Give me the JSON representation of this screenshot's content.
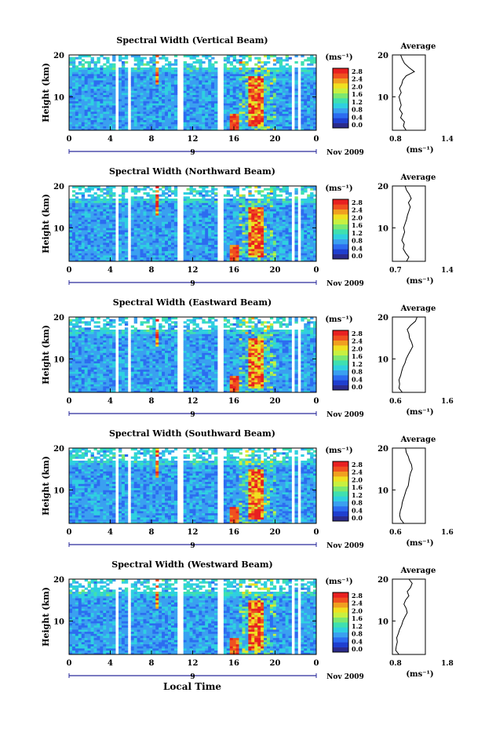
{
  "figure": {
    "x_axis_title": "Local Time",
    "date_label": "Nov 2009",
    "day_marker": "9",
    "y_axis_title": "Height (km)",
    "colorbar_unit": "(ms⁻¹)",
    "average_title": "Average",
    "average_unit": "(ms⁻¹)"
  },
  "colors": {
    "colormap": [
      "#2b2b8c",
      "#1f3fd0",
      "#2c6cf0",
      "#3aa0f0",
      "#2fd0e0",
      "#3fe0b0",
      "#7ce870",
      "#c8f040",
      "#f0e020",
      "#f0a020",
      "#f05020",
      "#e82020"
    ]
  },
  "chart_data": [
    {
      "type": "heatmap",
      "title": "Spectral Width (Vertical Beam)",
      "xlabel": "Local Time",
      "ylabel": "Height (km)",
      "xlim": [
        0,
        24
      ],
      "ylim": [
        2,
        20
      ],
      "xticks": [
        "0",
        "4",
        "8",
        "12",
        "16",
        "20",
        "0"
      ],
      "yticks": [
        "10",
        "20"
      ],
      "colorbar": {
        "unit": "(ms⁻¹)",
        "ticks": [
          "2.8",
          "2.4",
          "2.0",
          "1.6",
          "1.2",
          "0.8",
          "0.4",
          "0.0"
        ]
      },
      "average": {
        "title": "Average",
        "xlabel": "(ms⁻¹)",
        "xlim": [
          0.8,
          1.4
        ],
        "xticks": [
          "0.8",
          "1.4"
        ],
        "yticks": [
          "10",
          "20"
        ],
        "profile": [
          [
            1.05,
            2
          ],
          [
            1.0,
            3
          ],
          [
            1.02,
            4
          ],
          [
            0.95,
            5
          ],
          [
            0.98,
            6
          ],
          [
            0.93,
            7
          ],
          [
            0.96,
            8
          ],
          [
            0.94,
            9
          ],
          [
            0.92,
            10
          ],
          [
            0.96,
            11
          ],
          [
            0.93,
            12
          ],
          [
            0.97,
            13
          ],
          [
            0.99,
            14
          ],
          [
            1.05,
            15
          ],
          [
            1.2,
            16
          ],
          [
            1.1,
            17
          ],
          [
            1.02,
            18
          ],
          [
            0.98,
            19
          ],
          [
            0.95,
            20
          ]
        ]
      }
    },
    {
      "type": "heatmap",
      "title": "Spectral Width (Northward Beam)",
      "xlabel": "Local Time",
      "ylabel": "Height (km)",
      "xlim": [
        0,
        24
      ],
      "ylim": [
        2,
        20
      ],
      "xticks": [
        "0",
        "4",
        "8",
        "12",
        "16",
        "20",
        "0"
      ],
      "yticks": [
        "10",
        "20"
      ],
      "colorbar": {
        "unit": "(ms⁻¹)",
        "ticks": [
          "2.8",
          "2.4",
          "2.0",
          "1.6",
          "1.2",
          "0.8",
          "0.4",
          "0.0"
        ]
      },
      "average": {
        "title": "Average",
        "xlabel": "(ms⁻¹)",
        "xlim": [
          0.7,
          1.4
        ],
        "xticks": [
          "0.7",
          "1.4"
        ],
        "yticks": [
          "10",
          "20"
        ],
        "profile": [
          [
            1.0,
            2
          ],
          [
            1.05,
            3
          ],
          [
            0.98,
            4
          ],
          [
            0.93,
            5
          ],
          [
            0.95,
            6
          ],
          [
            0.9,
            7
          ],
          [
            0.93,
            8
          ],
          [
            0.96,
            9
          ],
          [
            0.94,
            10
          ],
          [
            0.97,
            11
          ],
          [
            1.0,
            12
          ],
          [
            1.02,
            13
          ],
          [
            1.05,
            14
          ],
          [
            1.08,
            15
          ],
          [
            1.04,
            16
          ],
          [
            1.1,
            17
          ],
          [
            1.06,
            18
          ],
          [
            1.0,
            19
          ],
          [
            0.97,
            20
          ]
        ]
      }
    },
    {
      "type": "heatmap",
      "title": "Spectral Width (Eastward Beam)",
      "xlabel": "Local Time",
      "ylabel": "Height (km)",
      "xlim": [
        0,
        24
      ],
      "ylim": [
        2,
        20
      ],
      "xticks": [
        "0",
        "4",
        "8",
        "12",
        "16",
        "20",
        "0"
      ],
      "yticks": [
        "10",
        "20"
      ],
      "colorbar": {
        "unit": "(ms⁻¹)",
        "ticks": [
          "2.8",
          "2.4",
          "2.0",
          "1.6",
          "1.2",
          "0.8",
          "0.4",
          "0.0"
        ]
      },
      "average": {
        "title": "Average",
        "xlabel": "(ms⁻¹)",
        "xlim": [
          0.6,
          1.6
        ],
        "xticks": [
          "0.6",
          "1.6"
        ],
        "yticks": [
          "10",
          "20"
        ],
        "profile": [
          [
            0.9,
            2
          ],
          [
            0.8,
            3
          ],
          [
            0.82,
            4
          ],
          [
            0.8,
            5
          ],
          [
            0.85,
            6
          ],
          [
            0.88,
            7
          ],
          [
            0.92,
            8
          ],
          [
            0.98,
            9
          ],
          [
            1.02,
            10
          ],
          [
            1.08,
            11
          ],
          [
            1.15,
            12
          ],
          [
            1.22,
            13
          ],
          [
            1.18,
            14
          ],
          [
            1.12,
            15
          ],
          [
            1.1,
            16
          ],
          [
            1.05,
            17
          ],
          [
            1.15,
            18
          ],
          [
            1.3,
            19
          ],
          [
            1.35,
            20
          ]
        ]
      }
    },
    {
      "type": "heatmap",
      "title": "Spectral Width (Southward Beam)",
      "xlabel": "Local Time",
      "ylabel": "Height (km)",
      "xlim": [
        0,
        24
      ],
      "ylim": [
        2,
        20
      ],
      "xticks": [
        "0",
        "4",
        "8",
        "12",
        "16",
        "20",
        "0"
      ],
      "yticks": [
        "10",
        "20"
      ],
      "colorbar": {
        "unit": "(ms⁻¹)",
        "ticks": [
          "2.8",
          "2.4",
          "2.0",
          "1.6",
          "1.2",
          "0.8",
          "0.4",
          "0.0"
        ]
      },
      "average": {
        "title": "Average",
        "xlabel": "(ms⁻¹)",
        "xlim": [
          0.6,
          1.6
        ],
        "xticks": [
          "0.6",
          "1.6"
        ],
        "yticks": [
          "10",
          "20"
        ],
        "profile": [
          [
            0.95,
            2
          ],
          [
            0.85,
            3
          ],
          [
            0.82,
            4
          ],
          [
            0.84,
            5
          ],
          [
            0.88,
            6
          ],
          [
            0.9,
            7
          ],
          [
            0.94,
            8
          ],
          [
            0.98,
            9
          ],
          [
            1.02,
            10
          ],
          [
            1.08,
            11
          ],
          [
            1.1,
            12
          ],
          [
            1.12,
            13
          ],
          [
            1.15,
            14
          ],
          [
            1.2,
            15
          ],
          [
            1.18,
            16
          ],
          [
            1.12,
            17
          ],
          [
            1.08,
            18
          ],
          [
            1.02,
            19
          ],
          [
            1.0,
            20
          ]
        ]
      }
    },
    {
      "type": "heatmap",
      "title": "Spectral Width (Westward Beam)",
      "xlabel": "Local Time",
      "ylabel": "Height (km)",
      "xlim": [
        0,
        24
      ],
      "ylim": [
        2,
        20
      ],
      "xticks": [
        "0",
        "4",
        "8",
        "12",
        "16",
        "20",
        "0"
      ],
      "yticks": [
        "10",
        "20"
      ],
      "colorbar": {
        "unit": "(ms⁻¹)",
        "ticks": [
          "2.8",
          "2.4",
          "2.0",
          "1.6",
          "1.2",
          "0.8",
          "0.4",
          "0.0"
        ]
      },
      "average": {
        "title": "Average",
        "xlabel": "(ms⁻¹)",
        "xlim": [
          0.8,
          1.8
        ],
        "xticks": [
          "0.8",
          "1.8"
        ],
        "yticks": [
          "10",
          "20"
        ],
        "profile": [
          [
            1.0,
            2
          ],
          [
            0.9,
            3
          ],
          [
            0.92,
            4
          ],
          [
            0.95,
            5
          ],
          [
            0.93,
            6
          ],
          [
            0.98,
            7
          ],
          [
            1.02,
            8
          ],
          [
            1.08,
            9
          ],
          [
            1.12,
            10
          ],
          [
            1.18,
            11
          ],
          [
            1.25,
            12
          ],
          [
            1.22,
            13
          ],
          [
            1.15,
            14
          ],
          [
            1.2,
            15
          ],
          [
            1.3,
            16
          ],
          [
            1.25,
            17
          ],
          [
            1.35,
            18
          ],
          [
            1.4,
            19
          ],
          [
            1.3,
            20
          ]
        ]
      }
    }
  ]
}
